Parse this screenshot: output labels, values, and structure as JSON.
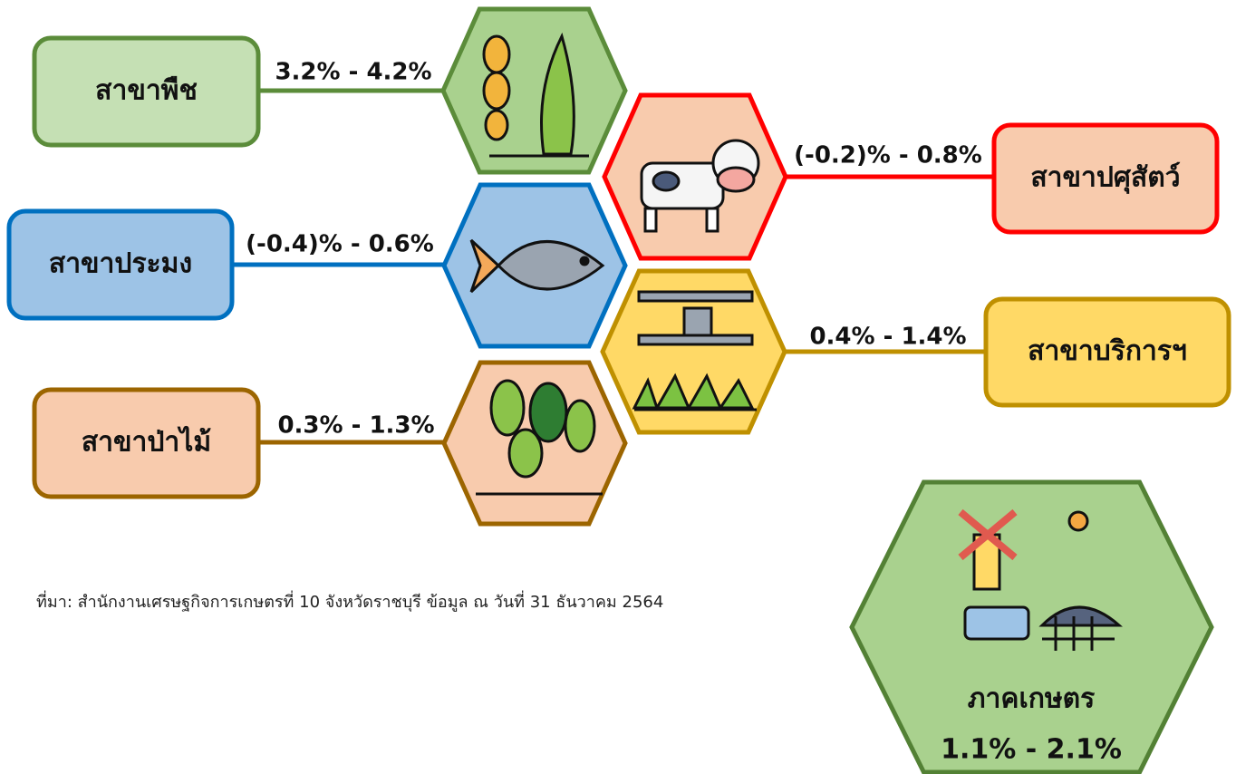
{
  "branches": [
    {
      "label": "สาขาพืช",
      "range": "3.2% - 4.2%"
    },
    {
      "label": "สาขาปศุสัตว์",
      "range": "(-0.2)% - 0.8%"
    },
    {
      "label": "สาขาประมง",
      "range": "(-0.4)% - 0.6%"
    },
    {
      "label": "สาขาบริการฯ",
      "range": "0.4% - 1.4%"
    },
    {
      "label": "สาขาป่าไม้",
      "range": "0.3% - 1.3%"
    }
  ],
  "total": {
    "label": "ภาคเกษตร",
    "range": "1.1% - 2.1%"
  },
  "source": "ที่มา: สำนักงานเศรษฐกิจการเกษตรที่ 10 จังหวัดราชบุรี ข้อมูล ณ วันที่ 31 ธันวาคม 2564"
}
